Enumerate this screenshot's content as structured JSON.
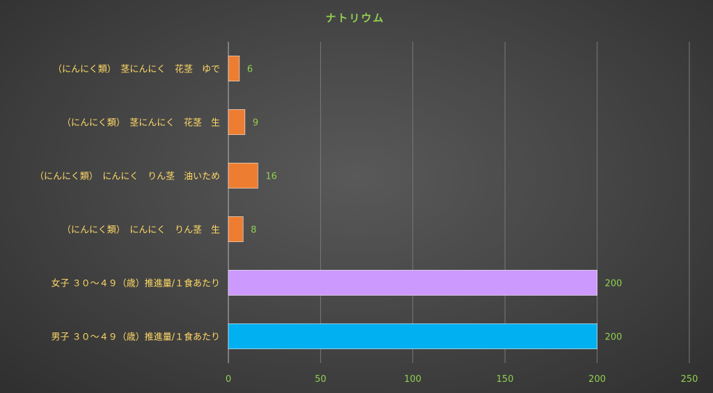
{
  "chart_data": {
    "type": "bar",
    "orientation": "horizontal",
    "title": "ナトリウム",
    "categories": [
      "（にんにく類）　茎にんにく　花茎　ゆで",
      "（にんにく類）　茎にんにく　花茎　生",
      "（にんにく類）　にんにく　りん茎　油いため",
      "（にんにく類）　にんにく　りん茎　生",
      "女子 ３０～４９（歳）推進量/１食あたり",
      "男子 ３０～４９（歳）推進量/１食あたり"
    ],
    "values": [
      6,
      9,
      16,
      8,
      200,
      200
    ],
    "bar_colors": [
      "#ed7d31",
      "#ed7d31",
      "#ed7d31",
      "#ed7d31",
      "#cc99ff",
      "#00b0f0"
    ],
    "xlim": [
      0,
      250
    ],
    "xticks": [
      0,
      50,
      100,
      150,
      200,
      250
    ],
    "xlabel": "",
    "ylabel": "",
    "grid": "vertical",
    "legend": "none",
    "data_labels": true
  }
}
